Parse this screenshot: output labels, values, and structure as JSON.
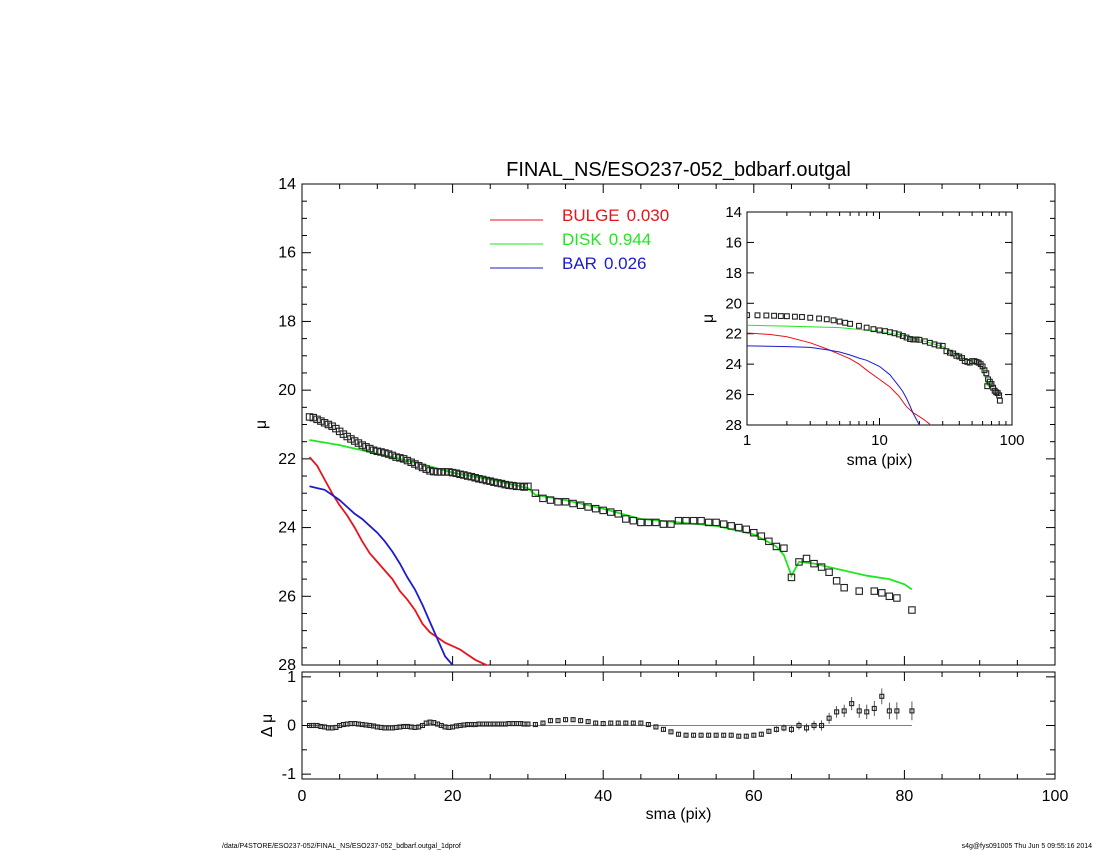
{
  "footer": {
    "left": "/data/P4STORE/ESO237-052/FINAL_NS/ESO237-052_bdbarf.outgal_1dprof",
    "right": "s4g@fys091005  Thu Jun  5 09:55:16 2014"
  },
  "colors": {
    "bulge": "#e8141c",
    "disk": "#1fe81f",
    "bar": "#1c1ccc",
    "data": "#000000",
    "axis": "#000000"
  },
  "chart_data": [
    {
      "id": "main",
      "type": "line",
      "title": "FINAL_NS/ESO237-052_bdbarf.outgal",
      "xlabel": "",
      "ylabel": "μ",
      "xlim": [
        0,
        100
      ],
      "ylim": [
        28,
        14
      ],
      "xticks": [],
      "yticks": [
        14,
        16,
        18,
        20,
        22,
        24,
        26,
        28
      ],
      "legend": {
        "placement": "top-center",
        "entries": [
          {
            "name": "BULGE",
            "value": "0.030",
            "color": "#e8141c"
          },
          {
            "name": "DISK",
            "value": "0.944",
            "color": "#1fe81f"
          },
          {
            "name": "BAR",
            "value": "0.026",
            "color": "#1c1ccc"
          }
        ]
      },
      "series": [
        {
          "name": "BULGE",
          "kind": "line",
          "x": [
            1,
            2,
            3,
            4,
            5,
            6,
            7,
            8,
            9,
            10,
            11,
            12,
            13,
            14,
            15,
            16,
            17,
            18,
            19,
            20,
            21,
            22,
            23,
            24,
            25
          ],
          "y": [
            21.95,
            22.2,
            22.6,
            23.0,
            23.35,
            23.65,
            24.0,
            24.4,
            24.75,
            25.0,
            25.25,
            25.5,
            25.85,
            26.1,
            26.4,
            26.8,
            27.05,
            27.2,
            27.35,
            27.45,
            27.55,
            27.7,
            27.85,
            27.95,
            28.05
          ]
        },
        {
          "name": "DISK",
          "kind": "line",
          "x": [
            1,
            5,
            10,
            15,
            20,
            25,
            30,
            31,
            35,
            40,
            45,
            50,
            55,
            60,
            63,
            64,
            65,
            66,
            68,
            70,
            75,
            78,
            80,
            81
          ],
          "y": [
            21.45,
            21.6,
            21.85,
            22.1,
            22.4,
            22.6,
            22.85,
            23.05,
            23.2,
            23.45,
            23.75,
            23.85,
            23.95,
            24.2,
            24.55,
            24.8,
            25.4,
            25.0,
            25.05,
            25.15,
            25.4,
            25.5,
            25.65,
            25.8
          ]
        },
        {
          "name": "BAR",
          "kind": "line",
          "x": [
            1,
            2,
            3,
            4,
            5,
            6,
            7,
            8,
            9,
            10,
            11,
            12,
            13,
            14,
            15,
            16,
            17,
            18,
            19,
            20
          ],
          "y": [
            22.8,
            22.85,
            22.9,
            23.05,
            23.2,
            23.4,
            23.6,
            23.75,
            23.95,
            24.15,
            24.4,
            24.7,
            25.05,
            25.45,
            25.8,
            26.25,
            26.75,
            27.25,
            27.75,
            28.0
          ]
        },
        {
          "name": "data",
          "kind": "points",
          "x": [
            1,
            1.5,
            2,
            2.5,
            3,
            3.5,
            4,
            4.5,
            5,
            5.5,
            6,
            6.5,
            7,
            7.5,
            8,
            8.5,
            9,
            9.5,
            10,
            10.5,
            11,
            11.5,
            12,
            12.5,
            13,
            13.5,
            14,
            14.5,
            15,
            15.5,
            16,
            16.5,
            17,
            17.5,
            18,
            18.5,
            19,
            19.5,
            20,
            20.5,
            21,
            21.5,
            22,
            22.5,
            23,
            23.5,
            24,
            24.5,
            25,
            25.5,
            26,
            26.5,
            27,
            27.5,
            28,
            28.5,
            29,
            29.5,
            30,
            31,
            32,
            33,
            34,
            35,
            36,
            37,
            38,
            39,
            40,
            41,
            42,
            43,
            44,
            45,
            46,
            47,
            48,
            49,
            50,
            51,
            52,
            53,
            54,
            55,
            56,
            57,
            58,
            59,
            60,
            61,
            62,
            63,
            64,
            65,
            66,
            67,
            68,
            69,
            70,
            71,
            72,
            74,
            76,
            77,
            78,
            79,
            81
          ],
          "y": [
            20.78,
            20.8,
            20.85,
            20.9,
            20.95,
            21.0,
            21.05,
            21.12,
            21.2,
            21.28,
            21.35,
            21.42,
            21.48,
            21.54,
            21.6,
            21.65,
            21.7,
            21.75,
            21.78,
            21.8,
            21.83,
            21.86,
            21.9,
            21.95,
            21.97,
            22.0,
            22.05,
            22.1,
            22.15,
            22.2,
            22.25,
            22.3,
            22.35,
            22.37,
            22.38,
            22.38,
            22.38,
            22.38,
            22.4,
            22.42,
            22.45,
            22.47,
            22.5,
            22.52,
            22.55,
            22.58,
            22.6,
            22.63,
            22.65,
            22.68,
            22.7,
            22.72,
            22.75,
            22.77,
            22.78,
            22.8,
            22.8,
            22.82,
            22.8,
            23.0,
            23.15,
            23.2,
            23.25,
            23.25,
            23.3,
            23.35,
            23.4,
            23.45,
            23.5,
            23.55,
            23.6,
            23.75,
            23.8,
            23.85,
            23.85,
            23.85,
            23.9,
            23.9,
            23.8,
            23.8,
            23.8,
            23.8,
            23.85,
            23.85,
            23.9,
            23.95,
            24.0,
            24.05,
            24.15,
            24.25,
            24.4,
            24.55,
            24.6,
            25.45,
            25.0,
            24.9,
            25.05,
            25.15,
            25.3,
            25.55,
            25.75,
            25.85,
            25.85,
            25.9,
            26.0,
            26.05,
            26.4
          ]
        }
      ]
    },
    {
      "id": "residual",
      "type": "scatter",
      "xlabel": "sma (pix)",
      "ylabel": "Δ μ",
      "xlim": [
        0,
        100
      ],
      "ylim": [
        -1.1,
        1.1
      ],
      "xticks": [
        0,
        20,
        40,
        60,
        80,
        100
      ],
      "yticks": [
        -1,
        0,
        1
      ],
      "zero_line": true,
      "series": [
        {
          "name": "residual",
          "x": [
            1,
            1.5,
            2,
            2.5,
            3,
            3.5,
            4,
            4.5,
            5,
            5.5,
            6,
            6.5,
            7,
            7.5,
            8,
            8.5,
            9,
            9.5,
            10,
            10.5,
            11,
            11.5,
            12,
            12.5,
            13,
            13.5,
            14,
            14.5,
            15,
            15.5,
            16,
            16.5,
            17,
            17.5,
            18,
            18.5,
            19,
            19.5,
            20,
            20.5,
            21,
            21.5,
            22,
            22.5,
            23,
            23.5,
            24,
            24.5,
            25,
            25.5,
            26,
            26.5,
            27,
            27.5,
            28,
            28.5,
            29,
            29.5,
            30,
            31,
            32,
            33,
            34,
            35,
            36,
            37,
            38,
            39,
            40,
            41,
            42,
            43,
            44,
            45,
            46,
            47,
            48,
            49,
            50,
            51,
            52,
            53,
            54,
            55,
            56,
            57,
            58,
            59,
            60,
            61,
            62,
            63,
            64,
            65,
            66,
            67,
            68,
            69,
            70,
            71,
            72,
            73,
            74,
            75,
            76,
            77,
            78,
            79,
            81
          ],
          "y": [
            0.0,
            0.0,
            0.0,
            -0.02,
            -0.03,
            -0.05,
            -0.05,
            -0.04,
            0.0,
            0.02,
            0.03,
            0.04,
            0.04,
            0.03,
            0.02,
            0.01,
            0.0,
            -0.01,
            -0.03,
            -0.04,
            -0.05,
            -0.05,
            -0.05,
            -0.04,
            -0.03,
            -0.02,
            -0.02,
            -0.03,
            -0.04,
            -0.03,
            0.0,
            0.05,
            0.07,
            0.06,
            0.03,
            0.0,
            -0.03,
            -0.04,
            -0.03,
            -0.01,
            0.0,
            0.01,
            0.02,
            0.02,
            0.02,
            0.03,
            0.03,
            0.03,
            0.03,
            0.03,
            0.03,
            0.03,
            0.03,
            0.04,
            0.04,
            0.04,
            0.04,
            0.03,
            0.03,
            0.02,
            0.05,
            0.1,
            0.1,
            0.12,
            0.12,
            0.1,
            0.08,
            0.05,
            0.04,
            0.05,
            0.05,
            0.05,
            0.05,
            0.05,
            0.02,
            -0.03,
            -0.08,
            -0.13,
            -0.18,
            -0.2,
            -0.2,
            -0.2,
            -0.2,
            -0.2,
            -0.2,
            -0.2,
            -0.22,
            -0.22,
            -0.2,
            -0.18,
            -0.12,
            -0.08,
            -0.05,
            -0.08,
            0.0,
            -0.05,
            0.0,
            0.0,
            0.15,
            0.28,
            0.3,
            0.45,
            0.3,
            0.28,
            0.35,
            0.6,
            0.3,
            0.3,
            0.3
          ]
        }
      ]
    },
    {
      "id": "inset",
      "type": "line",
      "xlabel": "sma (pix)",
      "ylabel": "μ",
      "xscale": "log",
      "xlim": [
        1,
        100
      ],
      "ylim": [
        28,
        14
      ],
      "xticks": [
        1,
        10,
        100
      ],
      "yticks": [
        14,
        16,
        18,
        20,
        22,
        24,
        26,
        28
      ],
      "series": [
        {
          "name": "BULGE",
          "kind": "line",
          "x": [
            1,
            1.5,
            2,
            3,
            4,
            5,
            6,
            7,
            8,
            10,
            12,
            14,
            16,
            18,
            20,
            22,
            24
          ],
          "y": [
            21.95,
            22.05,
            22.2,
            22.6,
            23.0,
            23.35,
            23.65,
            24.0,
            24.4,
            25.0,
            25.5,
            26.1,
            26.8,
            27.2,
            27.45,
            27.7,
            27.95
          ]
        },
        {
          "name": "DISK",
          "kind": "line",
          "x": [
            1,
            2,
            5,
            10,
            15,
            20,
            30,
            40,
            50,
            60,
            65,
            70,
            80
          ],
          "y": [
            21.45,
            21.5,
            21.6,
            21.85,
            22.1,
            22.4,
            22.85,
            23.45,
            23.85,
            24.2,
            25.4,
            25.15,
            25.8
          ]
        },
        {
          "name": "BAR",
          "kind": "line",
          "x": [
            1,
            2,
            3,
            4,
            5,
            6,
            7,
            8,
            10,
            12,
            14,
            15,
            16,
            17,
            18,
            20
          ],
          "y": [
            22.8,
            22.85,
            22.9,
            23.05,
            23.2,
            23.4,
            23.6,
            23.75,
            24.15,
            24.7,
            25.45,
            25.8,
            26.25,
            26.75,
            27.25,
            28.0
          ]
        },
        {
          "name": "data",
          "kind": "points",
          "x": [
            1,
            1.2,
            1.4,
            1.6,
            1.8,
            2,
            2.3,
            2.6,
            3,
            3.5,
            4,
            4.5,
            5,
            5.5,
            6,
            7,
            8,
            9,
            10,
            11,
            12,
            13,
            14,
            15,
            16,
            17,
            18,
            19,
            20,
            22,
            24,
            26,
            28,
            30,
            32,
            34,
            36,
            38,
            40,
            42,
            44,
            46,
            48,
            50,
            52,
            54,
            56,
            58,
            60,
            62,
            64,
            65,
            66,
            68,
            70,
            72,
            74,
            76,
            78,
            80,
            81
          ],
          "y": [
            20.78,
            20.79,
            20.8,
            20.82,
            20.84,
            20.85,
            20.88,
            20.9,
            20.95,
            21.0,
            21.05,
            21.12,
            21.2,
            21.28,
            21.35,
            21.48,
            21.6,
            21.7,
            21.78,
            21.83,
            21.9,
            21.97,
            22.05,
            22.15,
            22.25,
            22.35,
            22.38,
            22.38,
            22.4,
            22.5,
            22.6,
            22.7,
            22.78,
            22.8,
            23.15,
            23.25,
            23.3,
            23.45,
            23.5,
            23.6,
            23.8,
            23.85,
            23.9,
            23.8,
            23.8,
            23.85,
            23.9,
            24.0,
            24.15,
            24.4,
            24.6,
            25.45,
            25.0,
            25.15,
            25.3,
            25.55,
            25.75,
            25.85,
            25.9,
            26.05,
            26.4
          ]
        }
      ]
    }
  ]
}
